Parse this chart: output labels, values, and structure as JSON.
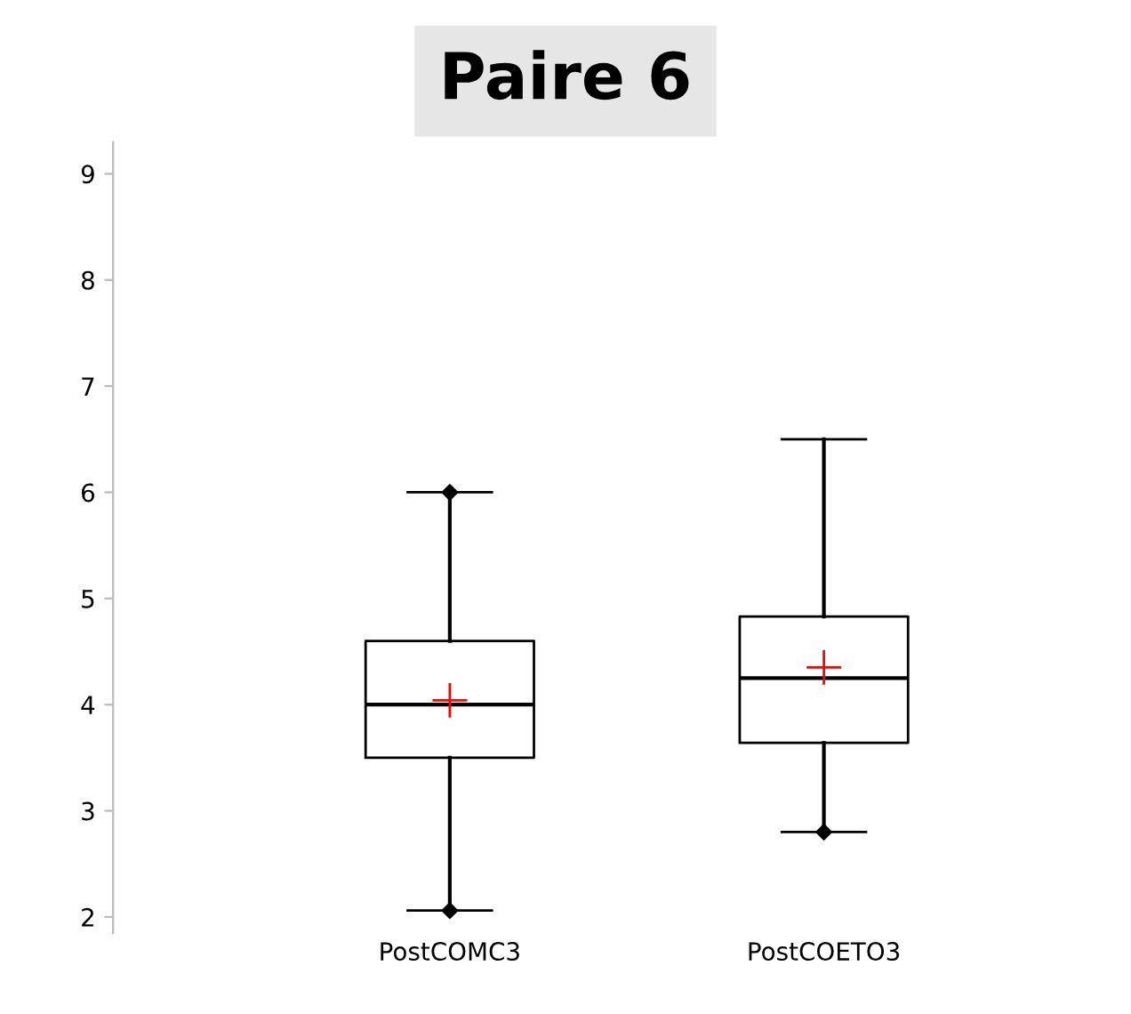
{
  "chart_data": {
    "type": "box",
    "title": "Paire 6",
    "categories": [
      "PostCOMC3",
      "PostCOETO3"
    ],
    "boxes": [
      {
        "low": 2.06,
        "q1": 3.5,
        "median": 4.0,
        "q3": 4.6,
        "high": 6.0,
        "mean": 4.04,
        "outliers": [
          2.06,
          6.0
        ]
      },
      {
        "low": 2.8,
        "q1": 3.64,
        "median": 4.25,
        "q3": 4.83,
        "high": 6.5,
        "mean": 4.35,
        "outliers": [
          2.8
        ]
      }
    ],
    "ylim": [
      1.85,
      9.3
    ],
    "yticks": [
      2,
      3,
      4,
      5,
      6,
      7,
      8,
      9
    ],
    "grid": false
  }
}
